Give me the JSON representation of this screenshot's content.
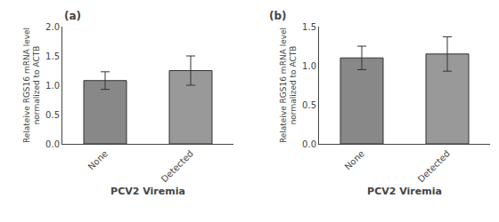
{
  "chart_data": [
    {
      "type": "bar",
      "title": "(a)",
      "categories": [
        "None",
        "Detected"
      ],
      "values": [
        1.08,
        1.25
      ],
      "errors": [
        0.15,
        0.25
      ],
      "colors": [
        "#888888",
        "#999999"
      ],
      "xlabel": "PCV2 Viremia",
      "ylabel": "Relateive RGS16 mRNA level\nnormalized to ACTB",
      "ylim": [
        0,
        2.0
      ],
      "yticks": [
        {
          "value": 0.0,
          "label": "0.0"
        },
        0.5,
        {
          "value": 1.0,
          "label": "1.0"
        },
        1.5,
        {
          "value": 2.0,
          "label": "2.0"
        }
      ],
      "grid": false
    },
    {
      "type": "bar",
      "title": "(b)",
      "categories": [
        "None",
        "Detected"
      ],
      "values": [
        1.1,
        1.15
      ],
      "errors": [
        0.15,
        0.22
      ],
      "colors": [
        "#888888",
        "#999999"
      ],
      "xlabel": "PCV2 Viremia",
      "ylabel": "Relateive RGS16 mRNA level\nnormalized to ACTB",
      "ylim": [
        0,
        1.5
      ],
      "yticks": [
        {
          "value": 0.0,
          "label": "0.0"
        },
        0.5,
        {
          "value": 1.0,
          "label": "1.0"
        },
        1.5
      ],
      "grid": false
    }
  ]
}
